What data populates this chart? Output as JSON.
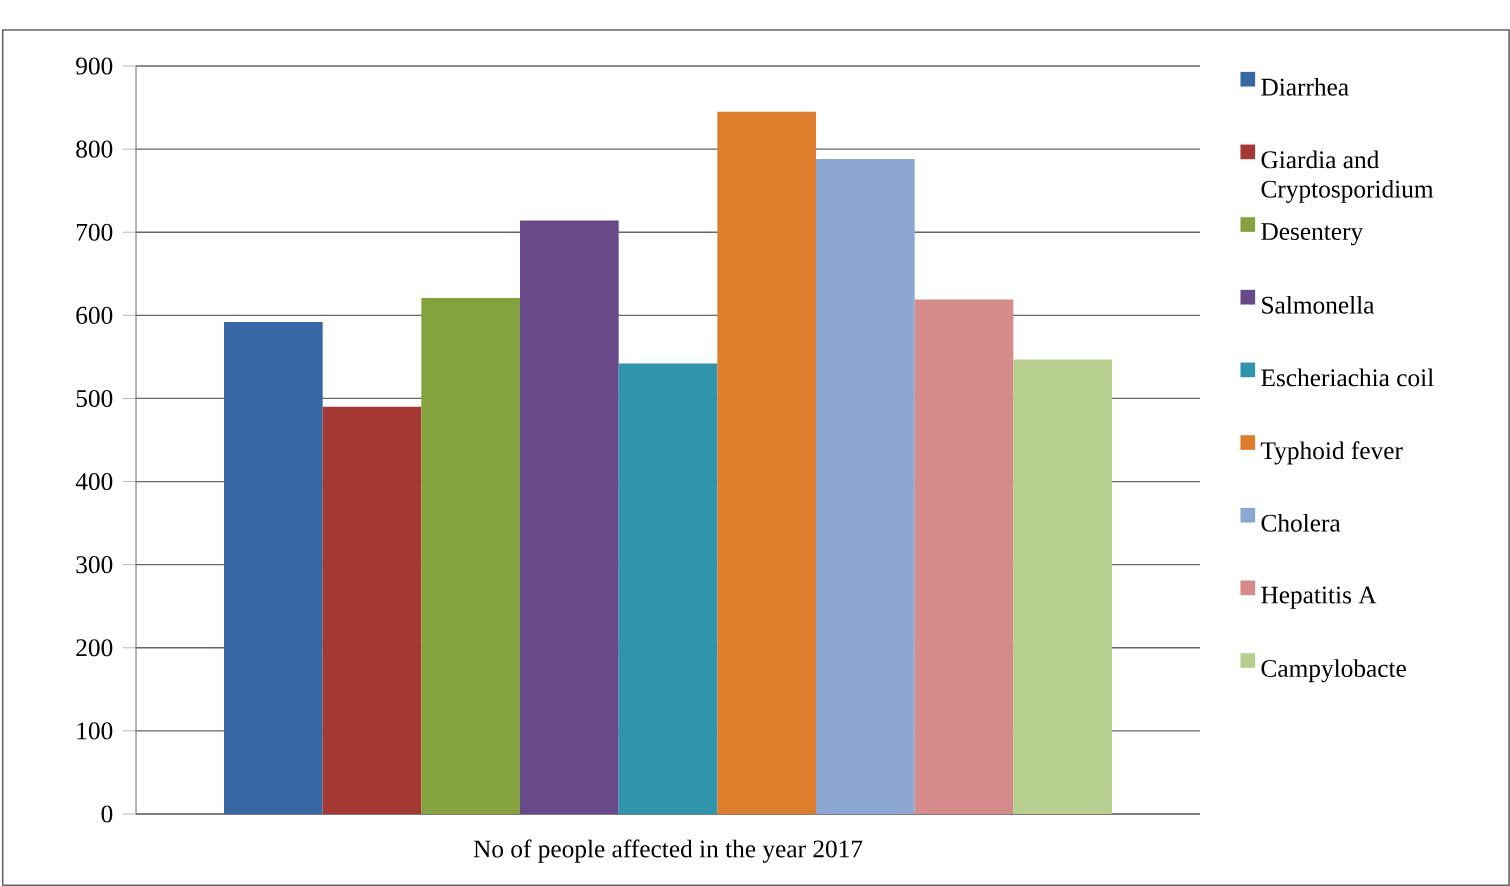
{
  "chart_data": {
    "type": "bar",
    "categories": [
      "No of people affected in the year 2017"
    ],
    "series": [
      {
        "name": "Diarrhea",
        "color": "#3767a5",
        "values": [
          592
        ]
      },
      {
        "name": "Giardia and Cryptosporidium",
        "color": "#a63834",
        "values": [
          490
        ]
      },
      {
        "name": "Desentery",
        "color": "#84a23e",
        "values": [
          621
        ]
      },
      {
        "name": "Salmonella",
        "color": "#684a8a",
        "values": [
          714
        ]
      },
      {
        "name": "Escheriachia coil",
        "color": "#2f94ac",
        "values": [
          542
        ]
      },
      {
        "name": "Typhoid fever",
        "color": "#de7e2c",
        "values": [
          845
        ]
      },
      {
        "name": "Cholera",
        "color": "#8ca7d2",
        "values": [
          788
        ]
      },
      {
        "name": "Hepatitis A",
        "color": "#d48b89",
        "values": [
          619
        ]
      },
      {
        "name": "Campylobacte",
        "color": "#b7cf8e",
        "values": [
          547
        ]
      }
    ],
    "ylim": [
      0,
      900
    ],
    "yticks": [
      0,
      100,
      200,
      300,
      400,
      500,
      600,
      700,
      800,
      900
    ],
    "grid": "y",
    "legend": "right"
  }
}
